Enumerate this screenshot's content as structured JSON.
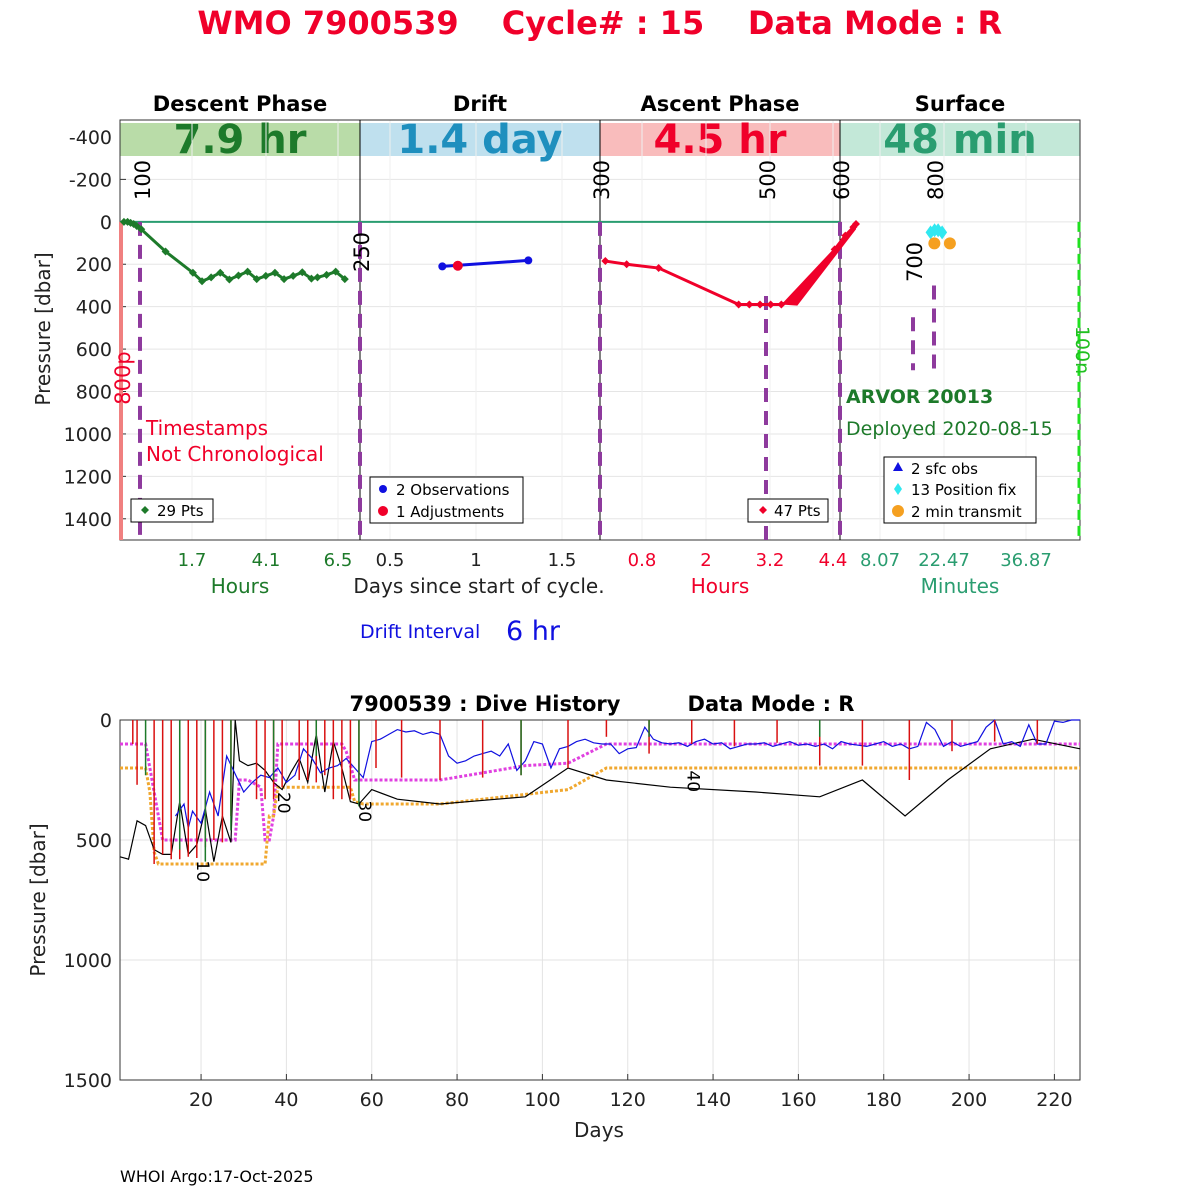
{
  "title": {
    "wmo": "WMO 7900539",
    "cycle": "Cycle# : 15",
    "mode": "Data Mode : R",
    "color": "#f0002a"
  },
  "top_panel": {
    "ylabel": "Pressure [dbar]",
    "yticks": [
      -400,
      -200,
      0,
      200,
      400,
      600,
      800,
      1000,
      1200,
      1400
    ],
    "ylim": [
      -480,
      1500
    ],
    "xlabel_center": "Days since start of cycle.",
    "phases": [
      {
        "name": "Descent Phase",
        "duration": "7.9 hr",
        "band_color": "#b9dca8",
        "text_color": "#1d7a2a",
        "ticks": [
          "1.7",
          "4.1",
          "6.5"
        ],
        "tick_color": "#1d7a2a",
        "unit": "Hours",
        "unit_color": "#1d7a2a"
      },
      {
        "name": "Drift",
        "duration": "1.4 day",
        "band_color": "#bfe0ee",
        "text_color": "#1e8fbe",
        "ticks": [
          "0.5",
          "1",
          "1.5"
        ],
        "tick_color": "#222222",
        "unit": "",
        "unit_color": "#222222"
      },
      {
        "name": "Ascent Phase",
        "duration": "4.5 hr",
        "band_color": "#f9bcbc",
        "text_color": "#f0002a",
        "ticks": [
          "0.8",
          "2",
          "3.2",
          "4.4"
        ],
        "tick_color": "#f0002a",
        "unit": "Hours",
        "unit_color": "#f0002a"
      },
      {
        "name": "Surface",
        "duration": "48 min",
        "band_color": "#c3e8d8",
        "text_color": "#2a9d70",
        "ticks": [
          "8.07",
          "22.47",
          "36.87"
        ],
        "tick_color": "#2a9d70",
        "unit": "Minutes",
        "unit_color": "#2a9d70"
      }
    ],
    "descent": [
      [
        0.13,
        0
      ],
      [
        0.25,
        0
      ],
      [
        0.35,
        5
      ],
      [
        0.45,
        10
      ],
      [
        0.55,
        20
      ],
      [
        0.7,
        35
      ],
      [
        1.5,
        140
      ],
      [
        2.4,
        240
      ],
      [
        2.7,
        280
      ],
      [
        3.0,
        262
      ],
      [
        3.3,
        240
      ],
      [
        3.6,
        272
      ],
      [
        3.9,
        253
      ],
      [
        4.2,
        235
      ],
      [
        4.5,
        270
      ],
      [
        4.8,
        255
      ],
      [
        5.1,
        240
      ],
      [
        5.4,
        270
      ],
      [
        5.7,
        255
      ],
      [
        6.0,
        238
      ],
      [
        6.3,
        268
      ],
      [
        6.5,
        262
      ],
      [
        6.8,
        250
      ],
      [
        7.1,
        235
      ],
      [
        7.4,
        270
      ]
    ],
    "drift_observations": [
      [
        0.81,
        210
      ],
      [
        1.31,
        182
      ]
    ],
    "drift_adjustments": [
      [
        0.9,
        207
      ]
    ],
    "ascent": [
      [
        0.1,
        185
      ],
      [
        0.5,
        200
      ],
      [
        1.1,
        218
      ],
      [
        2.6,
        390
      ],
      [
        2.8,
        390
      ],
      [
        3.0,
        390
      ],
      [
        3.2,
        390
      ],
      [
        3.4,
        390
      ],
      [
        3.6,
        370
      ],
      [
        3.8,
        330
      ],
      [
        4.0,
        270
      ],
      [
        4.2,
        200
      ],
      [
        4.4,
        130
      ],
      [
        4.6,
        65
      ],
      [
        4.75,
        25
      ],
      [
        4.8,
        10
      ]
    ],
    "surface_pos_fix": [
      [
        20.4,
        50
      ],
      [
        21.3,
        40
      ],
      [
        22.1,
        40
      ],
      [
        23.0,
        50
      ]
    ],
    "surface_transmit": [
      [
        20.8,
        50
      ],
      [
        24.3,
        50
      ]
    ],
    "vlines": [
      {
        "label": "100",
        "color": "#8e3a9d"
      },
      {
        "label": "250",
        "color": "#8e3a9d"
      },
      {
        "label": "300",
        "color": "#8e3a9d"
      },
      {
        "label": "500",
        "color": "#8e3a9d"
      },
      {
        "label": "600",
        "color": "#8e3a9d"
      },
      {
        "label": "700",
        "color": "#8e3a9d"
      },
      {
        "label": "800",
        "color": "#8e3a9d"
      }
    ],
    "left_marker_label": "800p",
    "right_marker_label": "100n",
    "warning": [
      "Timestamps",
      "Not Chronological"
    ],
    "warning_color": "#f0002a",
    "legends": {
      "descent": "29 Pts",
      "drift": [
        "2 Observations",
        "1 Adjustments"
      ],
      "ascent": "47 Pts",
      "surface": [
        "2 sfc obs",
        "13 Position fix",
        "2 min transmit"
      ]
    },
    "float_model": "ARVOR 20013",
    "deployed": "Deployed 2020-08-15",
    "float_color": "#1d7a2a",
    "drift_interval_label": "Drift Interval",
    "drift_interval_value": "6 hr",
    "drift_interval_color": "#1010e0"
  },
  "chart_data": {
    "type": "line",
    "title_left": "7900539 : Dive History",
    "title_right": "Data Mode : R",
    "xlabel": "Days",
    "ylabel": "Pressure [dbar]",
    "xlim": [
      1,
      226
    ],
    "ylim": [
      0,
      1500
    ],
    "xticks": [
      20,
      40,
      60,
      80,
      100,
      120,
      140,
      160,
      180,
      200,
      220
    ],
    "yticks": [
      0,
      500,
      1000,
      1500
    ],
    "cycle_labels": [
      {
        "label": "10",
        "x": 19,
        "y": 630
      },
      {
        "label": "20",
        "x": 38,
        "y": 345
      },
      {
        "label": "30",
        "x": 57,
        "y": 380
      },
      {
        "label": "40",
        "x": 134,
        "y": 255
      }
    ],
    "series": [
      {
        "name": "",
        "color": "#e040e0",
        "style": "dotted",
        "x": [
          1,
          7,
          9,
          10,
          11,
          28,
          29,
          31,
          34,
          35,
          36,
          37,
          38,
          40,
          53,
          54,
          56,
          57,
          58,
          76,
          96,
          106,
          115,
          226
        ],
        "y": [
          100,
          100,
          300,
          400,
          500,
          500,
          250,
          250,
          280,
          500,
          500,
          400,
          100,
          100,
          100,
          130,
          250,
          250,
          250,
          250,
          190,
          180,
          100,
          100
        ]
      },
      {
        "name": "",
        "color": "#f0a830",
        "style": "dotted",
        "y_label": "",
        "x": [
          1,
          7,
          8,
          9,
          10,
          11,
          35,
          36,
          37,
          38,
          40,
          53,
          55,
          56,
          58,
          76,
          106,
          115,
          226
        ],
        "y": [
          200,
          200,
          300,
          550,
          600,
          600,
          600,
          400,
          400,
          280,
          280,
          280,
          280,
          340,
          350,
          350,
          290,
          200,
          200
        ]
      },
      {
        "name": "",
        "color": "#000000",
        "style": "solid",
        "x": [
          1,
          3,
          5,
          7,
          9,
          11,
          13,
          15,
          17,
          19,
          21,
          23,
          25,
          27,
          28,
          29,
          31,
          33,
          35,
          37,
          39,
          41,
          43,
          45,
          47,
          49,
          51,
          53,
          55,
          57,
          60,
          66,
          76,
          96,
          106,
          115,
          130,
          150,
          165,
          175,
          185,
          195,
          205,
          215,
          226
        ],
        "y": [
          570,
          580,
          420,
          440,
          540,
          560,
          560,
          340,
          560,
          520,
          370,
          590,
          400,
          510,
          0,
          170,
          190,
          180,
          210,
          260,
          290,
          220,
          160,
          260,
          60,
          300,
          90,
          200,
          340,
          350,
          290,
          330,
          350,
          320,
          200,
          250,
          280,
          300,
          320,
          250,
          400,
          250,
          120,
          80,
          120
        ]
      },
      {
        "name": "",
        "color": "#1010e0",
        "style": "solid",
        "x": [
          14,
          16,
          17,
          18,
          20,
          22,
          24,
          26,
          30,
          32,
          34,
          36,
          38,
          40,
          42,
          44,
          46,
          48,
          50,
          52,
          54,
          56,
          58,
          60,
          62,
          64,
          66,
          68,
          70,
          72,
          74,
          76,
          78,
          80,
          82,
          84,
          86,
          88,
          90,
          92,
          94,
          96,
          98,
          100,
          102,
          104,
          106,
          108,
          110,
          112,
          114,
          116,
          118,
          120,
          122,
          124,
          126,
          128,
          130,
          132,
          134,
          136,
          138,
          140,
          142,
          144,
          146,
          148,
          150,
          152,
          154,
          156,
          158,
          160,
          162,
          164,
          166,
          168,
          170,
          172,
          174,
          176,
          178,
          180,
          182,
          184,
          186,
          188,
          190,
          192,
          194,
          196,
          198,
          200,
          202,
          204,
          206,
          208,
          210,
          212,
          214,
          216,
          218,
          220,
          222,
          224,
          226
        ],
        "y": [
          400,
          350,
          450,
          380,
          430,
          300,
          400,
          150,
          300,
          260,
          230,
          240,
          200,
          260,
          230,
          120,
          160,
          220,
          200,
          190,
          160,
          200,
          240,
          90,
          80,
          60,
          40,
          50,
          45,
          60,
          50,
          60,
          150,
          180,
          170,
          150,
          140,
          130,
          150,
          100,
          210,
          170,
          90,
          100,
          200,
          120,
          110,
          90,
          80,
          95,
          100,
          100,
          140,
          120,
          115,
          30,
          80,
          95,
          100,
          95,
          110,
          90,
          80,
          100,
          95,
          120,
          110,
          100,
          100,
          95,
          110,
          100,
          90,
          105,
          100,
          110,
          100,
          120,
          90,
          100,
          105,
          110,
          100,
          90,
          110,
          100,
          120,
          110,
          10,
          40,
          110,
          90,
          110,
          100,
          90,
          30,
          0,
          100,
          90,
          110,
          20,
          100,
          100,
          5,
          10,
          0,
          0
        ]
      },
      {
        "name": "",
        "color": "#d91010",
        "style": "spikes",
        "x": [
          4,
          5,
          9,
          11,
          13,
          15,
          17,
          19,
          21,
          23,
          25,
          27,
          33,
          35,
          37,
          39,
          43,
          45,
          47,
          49,
          51,
          53,
          55,
          57,
          61,
          67,
          76,
          86,
          95,
          106,
          115,
          125,
          135,
          145,
          155,
          165,
          175,
          186,
          196,
          206,
          216
        ],
        "y": [
          100,
          270,
          600,
          560,
          580,
          580,
          570,
          575,
          530,
          500,
          510,
          400,
          330,
          330,
          330,
          280,
          250,
          250,
          260,
          230,
          330,
          330,
          330,
          250,
          200,
          240,
          250,
          240,
          230,
          200,
          70,
          140,
          100,
          110,
          95,
          190,
          190,
          250,
          130,
          90,
          100
        ]
      },
      {
        "name": "",
        "color": "#1d7a2a",
        "style": "spikes",
        "x": [
          7,
          15,
          21,
          27,
          37,
          47,
          57,
          95,
          125,
          165
        ],
        "y": [
          230,
          540,
          590,
          460,
          250,
          150,
          360,
          230,
          70,
          70
        ]
      }
    ]
  },
  "footer": "WHOI Argo:17-Oct-2025"
}
